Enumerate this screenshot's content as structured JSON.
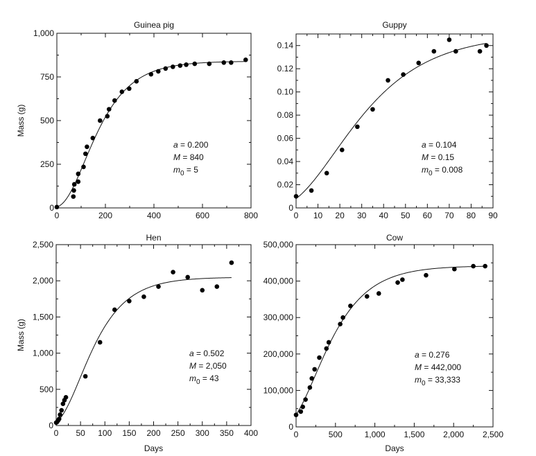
{
  "chart_data": [
    {
      "type": "scatter",
      "title": "Guinea pig",
      "xlabel": "",
      "ylabel": "Mass (g)",
      "xlim": [
        0,
        800
      ],
      "ylim": [
        0,
        1000
      ],
      "xticks": [
        0,
        200,
        400,
        600,
        800
      ],
      "yticks": [
        0,
        250,
        500,
        750,
        1000
      ],
      "xtick_labels": [
        "0",
        "200",
        "400",
        "600",
        "800"
      ],
      "ytick_labels": [
        "0",
        "250",
        "500",
        "750",
        "1,000"
      ],
      "grid": false,
      "fit_curve": {
        "t_max": 780
      },
      "params": [
        {
          "symbol": "a",
          "sub": "",
          "value": "0.200"
        },
        {
          "symbol": "M",
          "sub": "",
          "value": "840"
        },
        {
          "symbol": "m",
          "sub": "0",
          "value": "5"
        }
      ],
      "x": [
        0,
        68,
        70,
        72,
        88,
        88,
        110,
        118,
        124,
        148,
        178,
        208,
        215,
        238,
        268,
        298,
        328,
        388,
        418,
        448,
        478,
        508,
        533,
        568,
        628,
        688,
        718,
        778
      ],
      "y": [
        5,
        65,
        100,
        135,
        150,
        195,
        235,
        310,
        350,
        400,
        500,
        525,
        565,
        615,
        665,
        683,
        725,
        765,
        782,
        798,
        808,
        815,
        820,
        825,
        825,
        832,
        832,
        848
      ]
    },
    {
      "type": "scatter",
      "title": "Guppy",
      "xlabel": "",
      "ylabel": "",
      "xlim": [
        0,
        90
      ],
      "ylim": [
        0,
        0.15
      ],
      "xticks": [
        0,
        10,
        20,
        30,
        40,
        50,
        60,
        70,
        80,
        90
      ],
      "yticks": [
        0,
        0.02,
        0.04,
        0.06,
        0.08,
        0.1,
        0.12,
        0.14
      ],
      "xtick_labels": [
        "0",
        "10",
        "20",
        "30",
        "40",
        "50",
        "60",
        "70",
        "80",
        "90"
      ],
      "ytick_labels": [
        "0",
        "0.02",
        "0.04",
        "0.06",
        "0.08",
        "0.10",
        "0.12",
        "0.14"
      ],
      "grid": false,
      "fit_curve": {
        "t_max": 87
      },
      "params": [
        {
          "symbol": "a",
          "sub": "",
          "value": "0.104"
        },
        {
          "symbol": "M",
          "sub": "",
          "value": "0.15"
        },
        {
          "symbol": "m",
          "sub": "0",
          "value": "0.008"
        }
      ],
      "x": [
        0,
        7,
        14,
        21,
        28,
        35,
        42,
        49,
        56,
        63,
        70,
        73,
        84,
        87
      ],
      "y": [
        0.01,
        0.015,
        0.03,
        0.05,
        0.07,
        0.085,
        0.11,
        0.115,
        0.125,
        0.135,
        0.145,
        0.135,
        0.135,
        0.14
      ]
    },
    {
      "type": "scatter",
      "title": "Hen",
      "xlabel": "Days",
      "ylabel": "Mass (g)",
      "xlim": [
        0,
        400
      ],
      "ylim": [
        0,
        2500
      ],
      "xticks": [
        0,
        50,
        100,
        150,
        200,
        250,
        300,
        350,
        400
      ],
      "yticks": [
        0,
        500,
        1000,
        1500,
        2000,
        2500
      ],
      "xtick_labels": [
        "0",
        "50",
        "100",
        "150",
        "200",
        "250",
        "300",
        "350",
        "400"
      ],
      "ytick_labels": [
        "0",
        "500",
        "1,000",
        "1,500",
        "2,000",
        "2,500"
      ],
      "grid": false,
      "fit_curve": {
        "t_max": 360
      },
      "params": [
        {
          "symbol": "a",
          "sub": "",
          "value": "0.502"
        },
        {
          "symbol": "M",
          "sub": "",
          "value": "2,050"
        },
        {
          "symbol": "m",
          "sub": "0",
          "value": "43"
        }
      ],
      "x": [
        0,
        2,
        4,
        6,
        8,
        11,
        14,
        17,
        20,
        60,
        90,
        120,
        150,
        180,
        210,
        240,
        270,
        300,
        330,
        360
      ],
      "y": [
        40,
        50,
        70,
        90,
        150,
        210,
        300,
        350,
        390,
        680,
        1150,
        1600,
        1720,
        1780,
        1920,
        2120,
        2050,
        1870,
        1920,
        2250
      ]
    },
    {
      "type": "scatter",
      "title": "Cow",
      "xlabel": "Days",
      "ylabel": "",
      "xlim": [
        0,
        2500
      ],
      "ylim": [
        0,
        500000
      ],
      "xticks": [
        0,
        500,
        1000,
        1500,
        2000,
        2500
      ],
      "yticks": [
        0,
        100000,
        200000,
        300000,
        400000,
        500000
      ],
      "xtick_labels": [
        "0",
        "500",
        "1,000",
        "1,500",
        "2,000",
        "2,500"
      ],
      "ytick_labels": [
        "0",
        "100,000",
        "200,000",
        "300,000",
        "400,000",
        "500,000"
      ],
      "grid": false,
      "fit_curve": {
        "t_max": 2420
      },
      "params": [
        {
          "symbol": "a",
          "sub": "",
          "value": "0.276"
        },
        {
          "symbol": "M",
          "sub": "",
          "value": "442,000"
        },
        {
          "symbol": "m",
          "sub": "0",
          "value": "33,333"
        }
      ],
      "x": [
        0,
        60,
        85,
        120,
        175,
        200,
        235,
        295,
        385,
        415,
        560,
        595,
        690,
        900,
        1050,
        1290,
        1350,
        1650,
        2010,
        2250,
        2400
      ],
      "y": [
        33000,
        42000,
        55000,
        75000,
        108000,
        133000,
        158000,
        190000,
        215000,
        232000,
        282000,
        300000,
        332000,
        358000,
        366000,
        396000,
        404000,
        416000,
        433000,
        441000,
        441000
      ]
    }
  ]
}
